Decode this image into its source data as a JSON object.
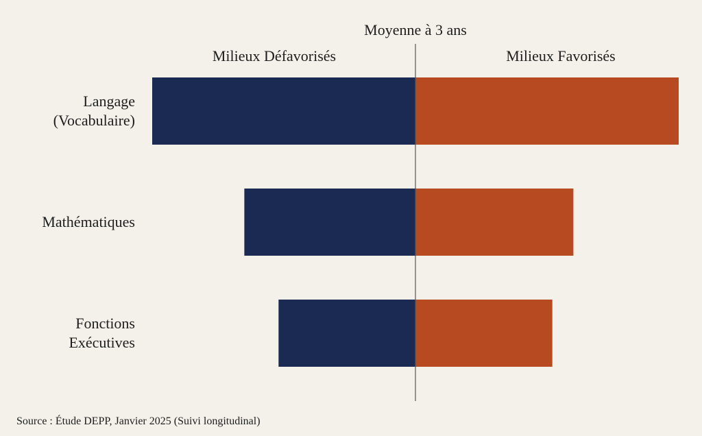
{
  "chart_data": {
    "type": "diverging-bar",
    "annotation": "Moyenne à 3 ans",
    "categories": [
      "Langage (Vocabulaire)",
      "Mathématiques",
      "Fonctions Exécutives"
    ],
    "series": [
      {
        "name": "Milieux Défavorisés",
        "color": "#1b2a52",
        "values": [
          100,
          65,
          52
        ]
      },
      {
        "name": "Milieux Favorisés",
        "color": "#b84a22",
        "values": [
          100,
          60,
          52
        ]
      }
    ],
    "xlim": [
      0,
      100
    ],
    "source": "Source : Étude DEPP, Janvier 2025 (Suivi longitudinal)"
  }
}
